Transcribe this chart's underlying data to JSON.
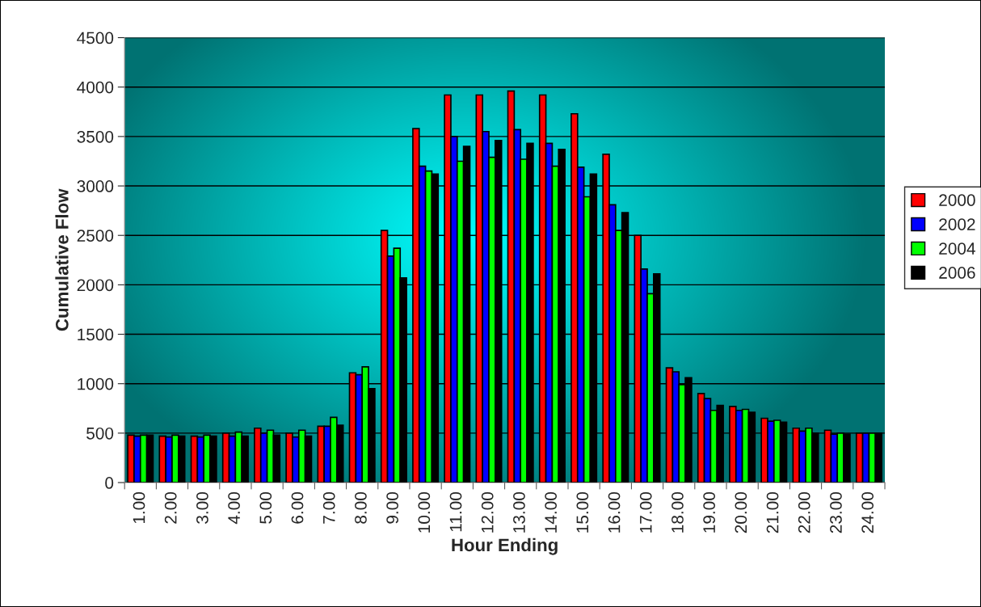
{
  "chart_data": {
    "type": "bar",
    "xlabel": "Hour Ending",
    "ylabel": "Cumulative Flow",
    "categories": [
      "1.00",
      "2.00",
      "3.00",
      "4.00",
      "5.00",
      "6.00",
      "7.00",
      "8.00",
      "9.00",
      "10.00",
      "11.00",
      "12.00",
      "13.00",
      "14.00",
      "15.00",
      "16.00",
      "17.00",
      "18.00",
      "19.00",
      "20.00",
      "21.00",
      "22.00",
      "23.00",
      "24.00"
    ],
    "series": [
      {
        "name": "2000",
        "color": "#ff0000",
        "values": [
          480,
          470,
          470,
          500,
          550,
          500,
          570,
          1110,
          2550,
          3580,
          3920,
          3920,
          3960,
          3920,
          3730,
          3320,
          2500,
          1160,
          900,
          770,
          650,
          550,
          530,
          500
        ]
      },
      {
        "name": "2002",
        "color": "#0000ff",
        "values": [
          470,
          460,
          460,
          470,
          500,
          460,
          570,
          1090,
          2290,
          3200,
          3500,
          3550,
          3570,
          3430,
          3190,
          2810,
          2160,
          1120,
          850,
          730,
          620,
          520,
          490,
          500
        ]
      },
      {
        "name": "2004",
        "color": "#00ff00",
        "values": [
          480,
          480,
          480,
          510,
          530,
          530,
          660,
          1170,
          2370,
          3150,
          3250,
          3290,
          3270,
          3200,
          2890,
          2550,
          1910,
          990,
          730,
          740,
          630,
          550,
          500,
          500
        ]
      },
      {
        "name": "2006",
        "color": "#000000",
        "values": [
          480,
          470,
          470,
          470,
          480,
          470,
          580,
          950,
          2070,
          3120,
          3400,
          3460,
          3430,
          3370,
          3120,
          2730,
          2110,
          1060,
          780,
          710,
          610,
          500,
          490,
          500
        ]
      }
    ],
    "ylim": [
      0,
      4500
    ],
    "yticks": [
      0,
      500,
      1000,
      1500,
      2000,
      2500,
      3000,
      3500,
      4000,
      4500
    ],
    "grid": "y",
    "legend": "right"
  }
}
